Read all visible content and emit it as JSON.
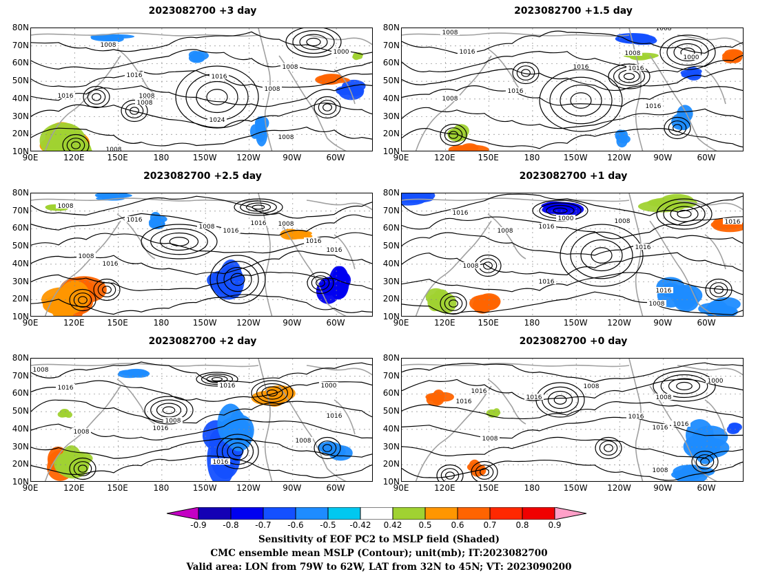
{
  "panels": [
    {
      "title": "2023082700 +3 day",
      "contour_labels": [
        "1008",
        "1000",
        "1008",
        "1016",
        "1016",
        "1016",
        "1016",
        "1008",
        "1008",
        "1008",
        "1024",
        "1008",
        "1008"
      ]
    },
    {
      "title": "2023082700 +1.5 day",
      "contour_labels": [
        "1008",
        "1008",
        "1016",
        "1008",
        "1000",
        "1016",
        "1016",
        "1016",
        "1008",
        "1016"
      ]
    },
    {
      "title": "2023082700 +2.5 day",
      "contour_labels": [
        "1008",
        "1016",
        "1008",
        "1016",
        "1016",
        "1008",
        "1016",
        "1016",
        "1008",
        "1016"
      ]
    },
    {
      "title": "2023082700 +1 day",
      "contour_labels": [
        "1016",
        "1000",
        "1008",
        "1016",
        "1016",
        "1008",
        "1008",
        "1016",
        "1016",
        "1008",
        "1016"
      ]
    },
    {
      "title": "2023082700 +2 day",
      "contour_labels": [
        "1008",
        "1016",
        "1016",
        "1000",
        "1008",
        "1016",
        "1008",
        "1016",
        "1008",
        "1016"
      ]
    },
    {
      "title": "2023082700 +0 day",
      "contour_labels": [
        "1008",
        "1016",
        "1016",
        "1016",
        "1016",
        "1000",
        "1008",
        "1016",
        "1016",
        "1008",
        "1008"
      ]
    }
  ],
  "lat_ticks": [
    "80N",
    "70N",
    "60N",
    "50N",
    "40N",
    "30N",
    "20N",
    "10N"
  ],
  "lon_ticks": [
    "90E",
    "120E",
    "150E",
    "180",
    "150W",
    "120W",
    "90W",
    "60W"
  ],
  "colorbar": {
    "ticks": [
      "-0.9",
      "-0.8",
      "-0.7",
      "-0.6",
      "-0.5",
      "-0.42",
      "0.42",
      "0.5",
      "0.6",
      "0.7",
      "0.8",
      "0.9"
    ],
    "colors": [
      "#c400c4",
      "#1400b4",
      "#0000f0",
      "#1450ff",
      "#1e8cff",
      "#00c8f0",
      "#ffffff",
      "#a0d232",
      "#ff9600",
      "#ff6400",
      "#ff2800",
      "#f00000",
      "#ffa0c8"
    ]
  },
  "caption": {
    "line1": "Sensitivity of EOF PC2 to MSLP field (Shaded)",
    "line2": "CMC ensemble mean MSLP (Contour); unit(mb); IT:2023082700",
    "line3": "Valid area: LON from 79W to 62W, LAT from 32N to 45N; VT: 2023090200"
  }
}
